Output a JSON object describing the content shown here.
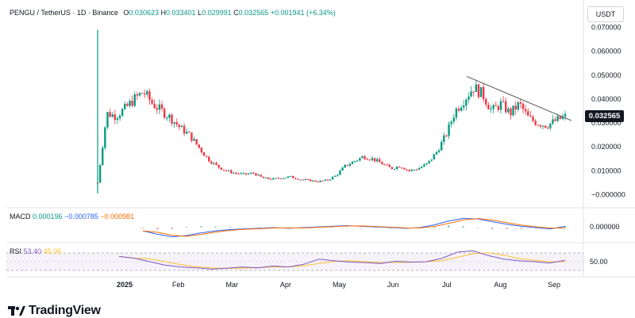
{
  "header": {
    "symbol": "PENGU / TetherUS · 1D · Binance",
    "open_label": "O",
    "open": "0.030623",
    "high_label": "H",
    "high": "0.033401",
    "low_label": "L",
    "low": "0.029991",
    "close_label": "C",
    "close": "0.032565",
    "change": "+0.001941 (+6.34%)"
  },
  "currency_button": "USDT",
  "price_badge": "0.032565",
  "macd": {
    "label": "MACD",
    "v1": "0.000196",
    "v2": "−0.000785",
    "v3": "−0.000981",
    "axis": "0.000000"
  },
  "rsi": {
    "label": "RSI",
    "v1": "53.40",
    "v2": "45.05",
    "axis": "50.00"
  },
  "brand": "TradingView",
  "colors": {
    "up": "#089981",
    "down": "#f23645",
    "macd": "#2962ff",
    "signal": "#ff6d00",
    "rsi": "#7e57c2",
    "rsi_ma": "#fbc02d"
  },
  "chart_data": {
    "type": "candlestick",
    "title": "PENGU / TetherUS · 1D · Binance",
    "y_ticks": [
      "0.070000",
      "0.060000",
      "0.050000",
      "0.040000",
      "0.030000",
      "0.020000",
      "0.010000",
      "−0.000000"
    ],
    "ylim": [
      -0.0005,
      0.0715
    ],
    "x_ticks": [
      "2025",
      "Feb",
      "Mar",
      "Apr",
      "May",
      "Jun",
      "Jul",
      "Aug",
      "Sep"
    ],
    "close_series": [
      0.005,
      0.034,
      0.033,
      0.036,
      0.04,
      0.043,
      0.038,
      0.035,
      0.032,
      0.028,
      0.025,
      0.02,
      0.015,
      0.012,
      0.01,
      0.009,
      0.0085,
      0.009,
      0.007,
      0.0065,
      0.007,
      0.0075,
      0.0065,
      0.006,
      0.0055,
      0.006,
      0.008,
      0.012,
      0.014,
      0.016,
      0.015,
      0.013,
      0.011,
      0.012,
      0.01,
      0.011,
      0.013,
      0.018,
      0.025,
      0.035,
      0.04,
      0.045,
      0.042,
      0.035,
      0.038,
      0.034,
      0.038,
      0.032,
      0.03,
      0.029,
      0.031,
      0.0326
    ],
    "trendline": [
      [
        0.0495,
        0
      ],
      [
        0.031,
        1
      ]
    ],
    "macd": [
      -0.0005,
      -0.001,
      -0.0014,
      -0.0012,
      -0.0008,
      -0.0005,
      -0.0003,
      -0.0002,
      -0.0001,
      0.0,
      -0.0001,
      0.0,
      0.0001,
      0.0002,
      0.0003,
      0.0002,
      0.0001,
      0.0,
      -0.0001,
      0.0,
      0.0004,
      0.001,
      0.0014,
      0.0013,
      0.0009,
      0.0005,
      0.0002,
      0.0,
      -0.0002,
      0.0002
    ],
    "rsi": [
      62,
      58,
      50,
      42,
      38,
      36,
      33,
      35,
      38,
      36,
      40,
      38,
      44,
      56,
      52,
      49,
      48,
      46,
      51,
      49,
      50,
      58,
      72,
      75,
      64,
      56,
      52,
      50,
      47,
      53
    ]
  }
}
